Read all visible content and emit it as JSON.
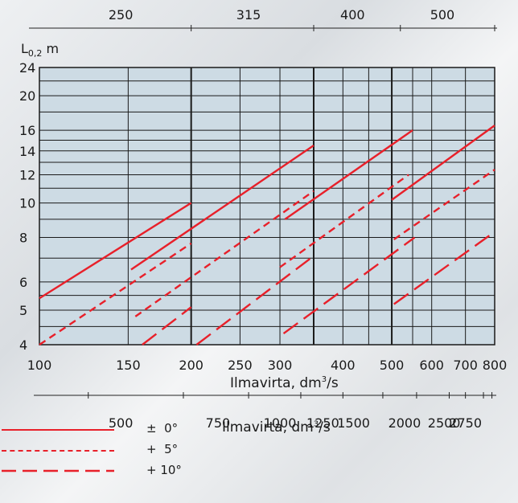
{
  "chart_data": {
    "type": "line",
    "ylabel_main": "L",
    "ylabel_sub": "0,2",
    "ylabel_unit": " m",
    "xlabel": "Ilmavirta, dm",
    "xlabel_sup": "3",
    "xlabel_tail": "/s",
    "x_scale": "log",
    "y_scale": "log",
    "xlim": [
      100,
      800
    ],
    "ylim": [
      4,
      24
    ],
    "x_ticks": [
      100,
      150,
      200,
      250,
      300,
      400,
      500,
      600,
      700,
      800
    ],
    "x_gridlines": [
      100,
      150,
      200,
      250,
      300,
      350,
      400,
      450,
      500,
      550,
      600,
      700,
      800
    ],
    "x_major_lines": [
      200,
      350,
      500
    ],
    "y_ticks": [
      4,
      5,
      6,
      8,
      10,
      12,
      14,
      16,
      20,
      24
    ],
    "y_gridlines": [
      4,
      4.5,
      5,
      5.5,
      6,
      7,
      8,
      9,
      10,
      11,
      12,
      13,
      14,
      15,
      16,
      18,
      20,
      22,
      24
    ],
    "top_axis": {
      "labels": [
        "250",
        "315",
        "400",
        "500"
      ],
      "label_positions": [
        145,
        260,
        418,
        630
      ],
      "tick_positions": [
        200,
        350,
        520,
        800
      ]
    },
    "bottom_axis": {
      "labels": [
        "500",
        "750",
        "1000",
        "1250",
        "1500",
        "2000",
        "2500",
        "2750"
      ],
      "label_positions": [
        145,
        226,
        300,
        365,
        420,
        530,
        635,
        700
      ],
      "tick_positions": [
        125,
        193,
        260,
        330,
        400,
        480,
        560,
        650,
        700,
        760,
        790
      ]
    },
    "grid": true,
    "series": [
      {
        "name": "± 0°",
        "style": "solid",
        "segments": [
          [
            [
              100,
              5.4
            ],
            [
              200,
              10
            ]
          ],
          [
            [
              152,
              6.5
            ],
            [
              350,
              14.5
            ]
          ],
          [
            [
              307,
              9
            ],
            [
              550,
              16
            ]
          ],
          [
            [
              500,
              10.2
            ],
            [
              800,
              16.5
            ]
          ]
        ]
      },
      {
        "name": "+ 5°",
        "style": "dashed",
        "segments": [
          [
            [
              100,
              4
            ],
            [
              200,
              7.7
            ]
          ],
          [
            [
              155,
              4.8
            ],
            [
              350,
              10.8
            ]
          ],
          [
            [
              300,
              6.6
            ],
            [
              540,
              12
            ]
          ],
          [
            [
              505,
              7.9
            ],
            [
              800,
              12.4
            ]
          ]
        ]
      },
      {
        "name": "+ 10°",
        "style": "longdash",
        "segments": [
          [
            [
              160,
              4
            ],
            [
              200,
              5.1
            ]
          ],
          [
            [
              205,
              4
            ],
            [
              350,
              7.1
            ]
          ],
          [
            [
              305,
              4.3
            ],
            [
              555,
              8
            ]
          ],
          [
            [
              505,
              5.2
            ],
            [
              800,
              8.3
            ]
          ]
        ]
      }
    ],
    "bottom_xlabel": "Ilmavirta, dm",
    "bottom_xlabel_sup": "3",
    "bottom_xlabel_tail": "/s",
    "colors": {
      "line": "#e8202a",
      "plot_bg": "#cddbe4",
      "grid": "#1a1a1a"
    }
  },
  "legend": [
    {
      "label": "±  0°",
      "style": "solid"
    },
    {
      "label": "+  5°",
      "style": "dashed"
    },
    {
      "label": "+ 10°",
      "style": "longdash"
    }
  ]
}
